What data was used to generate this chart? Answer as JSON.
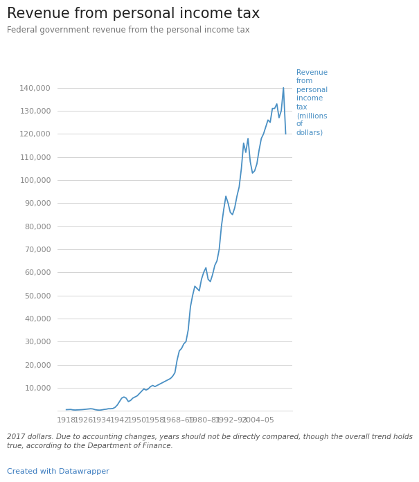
{
  "title": "Revenue from personal income tax",
  "subtitle": "Federal government revenue from the personal income tax",
  "footnote": "2017 dollars. Due to accounting changes, years should not be directly compared, though the overall trend holds\ntrue, according to the Department of Finance.",
  "credit": "Created with Datawrapper",
  "ylabel_annotation": "Revenue\nfrom\npersonal\nincome\ntax\n(millions\nof\ndollars)",
  "line_color": "#4a90c4",
  "background_color": "#ffffff",
  "title_color": "#222222",
  "subtitle_color": "#777777",
  "footnote_color": "#555555",
  "credit_color": "#3a7bbf",
  "grid_color": "#cccccc",
  "tick_label_color": "#888888",
  "ylim": [
    0,
    148000
  ],
  "yticks": [
    10000,
    20000,
    30000,
    40000,
    50000,
    60000,
    70000,
    80000,
    90000,
    100000,
    110000,
    120000,
    130000,
    140000
  ],
  "xtick_labels": [
    "1918",
    "1926",
    "1934",
    "1942",
    "1950",
    "1958",
    "1968–69",
    "1980–81",
    "1992–93",
    "2004–05"
  ],
  "xtick_positions": [
    1918,
    1926,
    1934,
    1942,
    1950,
    1958,
    1968.5,
    1980.5,
    1992.5,
    2004.5
  ],
  "xlim": [
    1914,
    2020
  ],
  "years": [
    1918,
    1919,
    1920,
    1921,
    1922,
    1923,
    1924,
    1925,
    1926,
    1927,
    1928,
    1929,
    1930,
    1931,
    1932,
    1933,
    1934,
    1935,
    1936,
    1937,
    1938,
    1939,
    1940,
    1941,
    1942,
    1943,
    1944,
    1945,
    1946,
    1947,
    1948,
    1949,
    1950,
    1951,
    1952,
    1953,
    1954,
    1955,
    1956,
    1957,
    1958,
    1959,
    1960,
    1961,
    1962,
    1963,
    1964,
    1965,
    1966,
    1967,
    1968,
    1969,
    1970,
    1971,
    1972,
    1973,
    1974,
    1975,
    1976,
    1977,
    1978,
    1979,
    1980,
    1981,
    1982,
    1983,
    1984,
    1985,
    1986,
    1987,
    1988,
    1989,
    1990,
    1991,
    1992,
    1993,
    1994,
    1995,
    1996,
    1997,
    1998,
    1999,
    2000,
    2001,
    2002,
    2003,
    2004,
    2005,
    2006,
    2007,
    2008,
    2009,
    2010,
    2011,
    2012,
    2013,
    2014,
    2015,
    2016,
    2017
  ],
  "values": [
    500,
    550,
    600,
    400,
    350,
    400,
    450,
    500,
    600,
    700,
    800,
    900,
    800,
    500,
    350,
    300,
    400,
    600,
    700,
    900,
    900,
    1000,
    1500,
    2500,
    4000,
    5500,
    6000,
    5500,
    4000,
    4500,
    5500,
    6000,
    6500,
    7500,
    8500,
    9500,
    9000,
    9500,
    10500,
    11000,
    10500,
    11000,
    11500,
    12000,
    12500,
    13000,
    13500,
    14000,
    15000,
    16500,
    22000,
    26000,
    27000,
    29000,
    30000,
    35000,
    45000,
    50000,
    54000,
    53000,
    52000,
    57000,
    60000,
    62000,
    57000,
    56000,
    59000,
    63000,
    65000,
    70000,
    80000,
    87000,
    93000,
    90000,
    86000,
    85000,
    88000,
    93000,
    97000,
    105000,
    116000,
    112000,
    118000,
    108000,
    103000,
    104000,
    107000,
    113000,
    118000,
    120000,
    123000,
    126000,
    125000,
    131000,
    131000,
    133000,
    127000,
    130000,
    140000,
    120000
  ],
  "title_fontsize": 15,
  "subtitle_fontsize": 8.5,
  "tick_fontsize": 8,
  "footnote_fontsize": 7.5,
  "credit_fontsize": 8,
  "annotation_fontsize": 7.5
}
